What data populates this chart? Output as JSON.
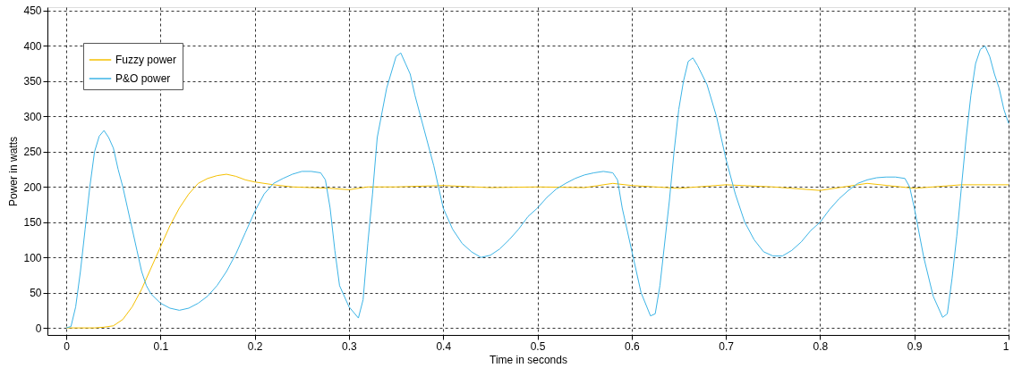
{
  "chart_data": {
    "type": "line",
    "xlabel": "Time in seconds",
    "ylabel": "Power in watts",
    "xlim": [
      -0.02,
      1.0
    ],
    "ylim": [
      -10,
      455
    ],
    "xticks": [
      0,
      0.1,
      0.2,
      0.3,
      0.4,
      0.5,
      0.6,
      0.7,
      0.8,
      0.9,
      1
    ],
    "yticks": [
      0,
      50,
      100,
      150,
      200,
      250,
      300,
      350,
      400,
      450
    ],
    "grid": true,
    "legend": "top left",
    "marker": "none",
    "line_style": "solid",
    "series": [
      {
        "name": "Fuzzy power",
        "color": "#f5c000",
        "x": [
          0,
          0.03,
          0.04,
          0.05,
          0.06,
          0.07,
          0.08,
          0.09,
          0.1,
          0.11,
          0.12,
          0.13,
          0.14,
          0.15,
          0.16,
          0.17,
          0.18,
          0.19,
          0.2,
          0.22,
          0.24,
          0.26,
          0.28,
          0.3,
          0.32,
          0.35,
          0.4,
          0.45,
          0.5,
          0.55,
          0.58,
          0.6,
          0.65,
          0.7,
          0.75,
          0.8,
          0.85,
          0.9,
          0.95,
          1.0
        ],
        "values": [
          0,
          0,
          1,
          3,
          12,
          30,
          55,
          85,
          115,
          145,
          170,
          190,
          205,
          212,
          216,
          218,
          215,
          210,
          207,
          203,
          200,
          199,
          198,
          196,
          200,
          200,
          202,
          199,
          200,
          199,
          205,
          202,
          198,
          203,
          200,
          195,
          205,
          198,
          203,
          203
        ]
      },
      {
        "name": "P&O power",
        "color": "#3cb4e6",
        "x": [
          0,
          0.005,
          0.01,
          0.015,
          0.02,
          0.025,
          0.03,
          0.035,
          0.04,
          0.045,
          0.05,
          0.055,
          0.06,
          0.065,
          0.07,
          0.075,
          0.08,
          0.085,
          0.09,
          0.1,
          0.11,
          0.12,
          0.13,
          0.14,
          0.15,
          0.16,
          0.17,
          0.18,
          0.19,
          0.2,
          0.21,
          0.22,
          0.23,
          0.24,
          0.25,
          0.26,
          0.27,
          0.275,
          0.28,
          0.285,
          0.29,
          0.3,
          0.31,
          0.315,
          0.32,
          0.325,
          0.33,
          0.34,
          0.35,
          0.355,
          0.36,
          0.365,
          0.37,
          0.38,
          0.39,
          0.395,
          0.4,
          0.41,
          0.42,
          0.43,
          0.44,
          0.45,
          0.46,
          0.47,
          0.48,
          0.49,
          0.5,
          0.51,
          0.52,
          0.53,
          0.54,
          0.55,
          0.56,
          0.57,
          0.58,
          0.585,
          0.59,
          0.6,
          0.61,
          0.62,
          0.625,
          0.63,
          0.64,
          0.645,
          0.65,
          0.655,
          0.66,
          0.665,
          0.67,
          0.68,
          0.69,
          0.7,
          0.71,
          0.72,
          0.73,
          0.74,
          0.75,
          0.76,
          0.77,
          0.78,
          0.79,
          0.8,
          0.81,
          0.82,
          0.83,
          0.84,
          0.85,
          0.86,
          0.87,
          0.88,
          0.89,
          0.895,
          0.9,
          0.91,
          0.92,
          0.93,
          0.935,
          0.94,
          0.945,
          0.95,
          0.955,
          0.96,
          0.965,
          0.97,
          0.975,
          0.98,
          0.985,
          0.99,
          0.995,
          1.0
        ],
        "values": [
          0,
          2,
          30,
          80,
          140,
          200,
          250,
          272,
          280,
          270,
          255,
          225,
          200,
          170,
          140,
          110,
          80,
          60,
          48,
          35,
          28,
          25,
          28,
          35,
          45,
          60,
          80,
          105,
          135,
          165,
          190,
          205,
          212,
          218,
          222,
          222,
          220,
          210,
          170,
          110,
          60,
          30,
          14,
          40,
          120,
          190,
          270,
          340,
          385,
          390,
          375,
          360,
          330,
          280,
          230,
          200,
          170,
          140,
          120,
          108,
          100,
          103,
          112,
          125,
          140,
          158,
          170,
          185,
          197,
          205,
          212,
          217,
          220,
          222,
          220,
          210,
          170,
          110,
          50,
          17,
          20,
          60,
          180,
          250,
          310,
          350,
          378,
          383,
          372,
          345,
          300,
          240,
          190,
          150,
          125,
          108,
          102,
          102,
          110,
          122,
          138,
          150,
          168,
          183,
          195,
          205,
          210,
          213,
          214,
          214,
          212,
          200,
          170,
          100,
          45,
          15,
          20,
          70,
          130,
          200,
          270,
          330,
          375,
          395,
          400,
          385,
          360,
          340,
          310,
          290
        ]
      }
    ]
  }
}
